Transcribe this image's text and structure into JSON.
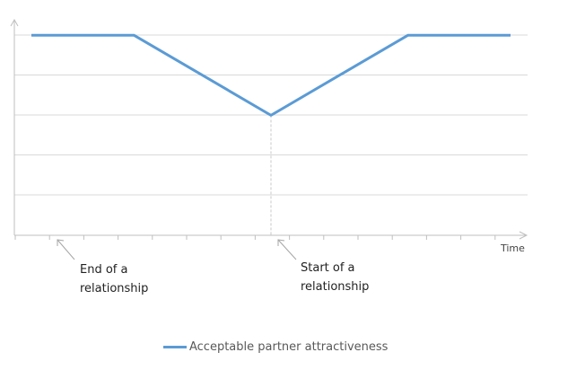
{
  "chart_data": {
    "type": "line",
    "title": "",
    "xlabel": "Time",
    "ylabel": "",
    "grid": true,
    "legend_position": "bottom",
    "x": [
      0,
      3,
      7,
      11,
      14
    ],
    "series": [
      {
        "name": "Acceptable partner attractiveness",
        "values": [
          5,
          5,
          3,
          5,
          5
        ]
      }
    ],
    "xlim": [
      -0.5,
      14.5
    ],
    "ylim": [
      0,
      5.5
    ],
    "annotations": [
      {
        "text": "End of a\nrelationship",
        "x": 0.7
      },
      {
        "text": "Start of a\nrelationship",
        "x": 7
      }
    ],
    "colors": {
      "series": "#5b9bd5",
      "grid": "#d9d9d9",
      "axis": "#bfbfbf",
      "arrow": "#a6a6a6"
    }
  }
}
